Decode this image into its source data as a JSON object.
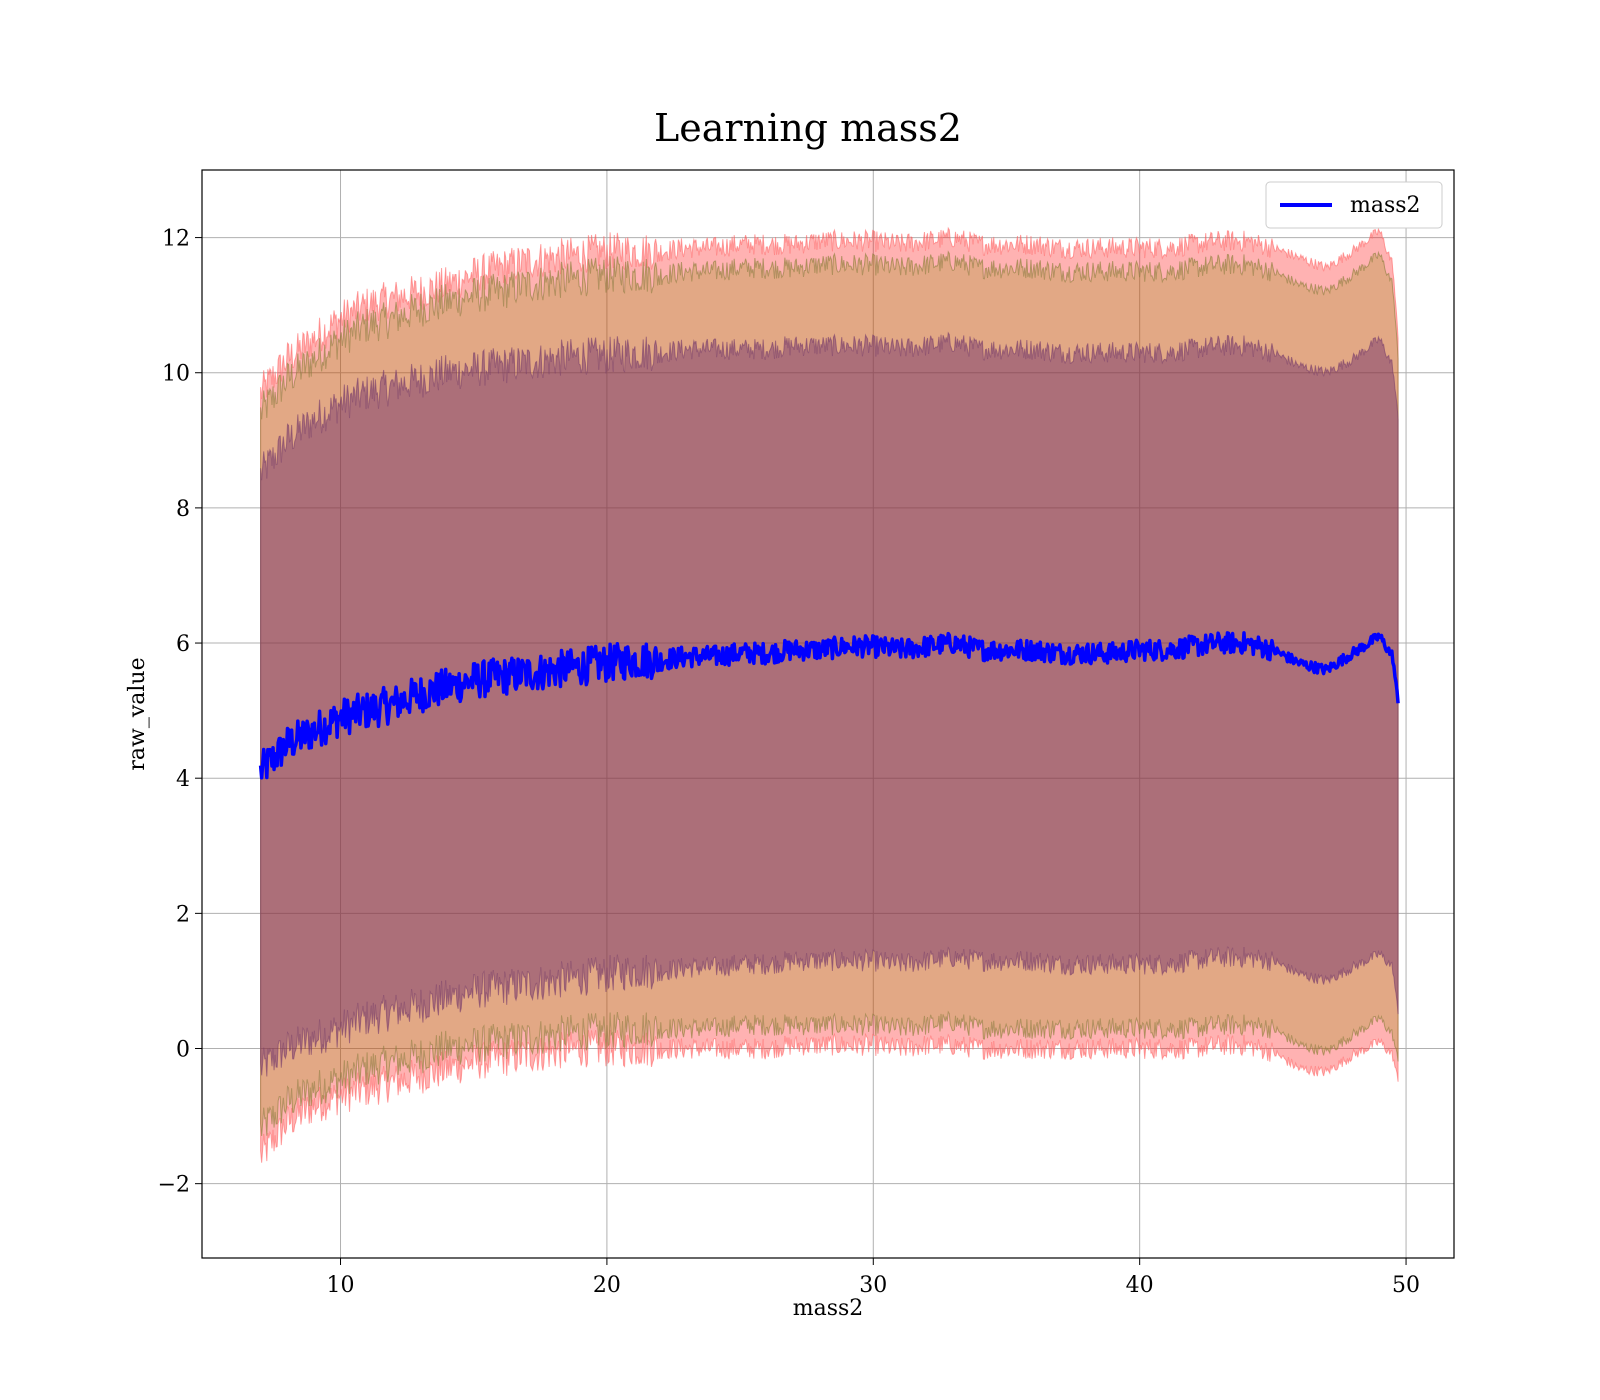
{
  "chart_data": {
    "type": "line",
    "title": "Learning mass2",
    "xlabel": "mass2",
    "ylabel": "raw_value",
    "xlim": [
      4.8,
      51.8
    ],
    "ylim": [
      -3.1,
      13.0
    ],
    "x_ticks": [
      10,
      20,
      30,
      40,
      50
    ],
    "x_tick_labels": [
      "10",
      "20",
      "30",
      "40",
      "50"
    ],
    "y_ticks": [
      -2,
      0,
      2,
      4,
      6,
      8,
      10,
      12
    ],
    "y_tick_labels": [
      "−2",
      "0",
      "2",
      "4",
      "6",
      "8",
      "10",
      "12"
    ],
    "grid": true,
    "legend": {
      "position": "top-right",
      "entries": [
        "mass2"
      ]
    },
    "colors": {
      "line": "#0000ff",
      "band_outer": "#ff0000",
      "band_mid": "#8b8b00",
      "band_inner": "#6a2a6a"
    },
    "series": [
      {
        "name": "mass2",
        "x": [
          7,
          8,
          9,
          10,
          11,
          12,
          13,
          14,
          15,
          16,
          17,
          18,
          19,
          20,
          21,
          22,
          23,
          24,
          25,
          26,
          27,
          28,
          29,
          30,
          31,
          32,
          33,
          34,
          35,
          36,
          37,
          38,
          39,
          40,
          41,
          42,
          43,
          44,
          45,
          46,
          47,
          48,
          49,
          49.5,
          49.7
        ],
        "mean": [
          4.1,
          4.5,
          4.7,
          4.9,
          5.0,
          5.1,
          5.25,
          5.35,
          5.45,
          5.5,
          5.55,
          5.6,
          5.65,
          5.7,
          5.75,
          5.75,
          5.8,
          5.8,
          5.85,
          5.85,
          5.9,
          5.9,
          5.95,
          5.95,
          5.9,
          5.95,
          6.0,
          5.9,
          5.9,
          5.9,
          5.85,
          5.85,
          5.85,
          5.9,
          5.9,
          5.95,
          6.0,
          6.0,
          5.9,
          5.7,
          5.6,
          5.85,
          6.1,
          5.8,
          5.1
        ]
      }
    ],
    "bands": [
      {
        "name": "outer",
        "upper": [
          9.7,
          10.2,
          10.5,
          10.8,
          11.0,
          11.1,
          11.2,
          11.3,
          11.45,
          11.55,
          11.65,
          11.7,
          11.75,
          11.8,
          11.8,
          11.8,
          11.85,
          11.85,
          11.9,
          11.9,
          11.9,
          11.95,
          11.95,
          11.95,
          11.9,
          11.95,
          12.0,
          11.9,
          11.9,
          11.9,
          11.85,
          11.85,
          11.85,
          11.85,
          11.85,
          11.9,
          11.95,
          11.95,
          11.85,
          11.7,
          11.55,
          11.8,
          12.1,
          11.6,
          10.5
        ],
        "lower": [
          -1.6,
          -1.1,
          -0.85,
          -0.7,
          -0.6,
          -0.5,
          -0.4,
          -0.3,
          -0.2,
          -0.15,
          -0.1,
          -0.05,
          0.0,
          0.0,
          0.0,
          0.0,
          0.0,
          0.0,
          0.0,
          0.0,
          0.05,
          0.05,
          0.05,
          0.05,
          0.0,
          0.05,
          0.05,
          0.0,
          0.0,
          0.0,
          0.0,
          0.0,
          0.0,
          0.0,
          0.0,
          0.0,
          0.05,
          0.05,
          -0.05,
          -0.3,
          -0.35,
          -0.1,
          0.1,
          -0.1,
          -0.5
        ]
      },
      {
        "name": "middle",
        "upper": [
          9.4,
          9.9,
          10.2,
          10.5,
          10.7,
          10.8,
          10.95,
          11.05,
          11.15,
          11.2,
          11.3,
          11.35,
          11.4,
          11.45,
          11.45,
          11.45,
          11.5,
          11.5,
          11.55,
          11.55,
          11.55,
          11.6,
          11.6,
          11.6,
          11.55,
          11.6,
          11.65,
          11.55,
          11.55,
          11.55,
          11.5,
          11.5,
          11.5,
          11.5,
          11.5,
          11.55,
          11.6,
          11.6,
          11.5,
          11.3,
          11.2,
          11.45,
          11.75,
          11.3,
          10.2
        ],
        "lower": [
          -1.2,
          -0.8,
          -0.6,
          -0.45,
          -0.3,
          -0.2,
          -0.1,
          0.0,
          0.05,
          0.1,
          0.15,
          0.2,
          0.25,
          0.25,
          0.3,
          0.3,
          0.3,
          0.3,
          0.35,
          0.35,
          0.35,
          0.35,
          0.35,
          0.35,
          0.3,
          0.35,
          0.4,
          0.3,
          0.3,
          0.3,
          0.3,
          0.3,
          0.3,
          0.3,
          0.3,
          0.3,
          0.35,
          0.35,
          0.3,
          0.05,
          -0.05,
          0.2,
          0.45,
          0.2,
          -0.2
        ]
      },
      {
        "name": "inner",
        "upper": [
          8.5,
          9.0,
          9.3,
          9.55,
          9.7,
          9.8,
          9.9,
          10.0,
          10.05,
          10.1,
          10.15,
          10.2,
          10.25,
          10.25,
          10.3,
          10.3,
          10.35,
          10.35,
          10.35,
          10.35,
          10.4,
          10.4,
          10.4,
          10.4,
          10.35,
          10.4,
          10.45,
          10.35,
          10.35,
          10.35,
          10.3,
          10.3,
          10.3,
          10.3,
          10.3,
          10.35,
          10.4,
          10.4,
          10.3,
          10.1,
          10.0,
          10.2,
          10.5,
          10.1,
          9.3
        ],
        "lower": [
          -0.3,
          0.0,
          0.15,
          0.3,
          0.45,
          0.55,
          0.65,
          0.75,
          0.85,
          0.9,
          0.95,
          1.0,
          1.05,
          1.1,
          1.15,
          1.15,
          1.2,
          1.2,
          1.25,
          1.25,
          1.3,
          1.3,
          1.3,
          1.3,
          1.25,
          1.3,
          1.35,
          1.3,
          1.3,
          1.3,
          1.25,
          1.25,
          1.25,
          1.25,
          1.25,
          1.3,
          1.35,
          1.35,
          1.3,
          1.1,
          1.0,
          1.2,
          1.4,
          1.2,
          0.5
        ]
      }
    ]
  }
}
